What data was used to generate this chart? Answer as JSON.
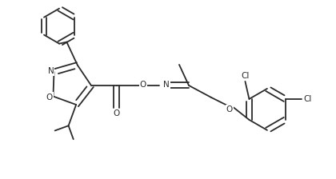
{
  "bg_color": "#ffffff",
  "bond_color": "#2a2a2a",
  "text_color": "#2a2a2a",
  "hetero_color": "#2a2a2a",
  "line_width": 1.3,
  "figsize": [
    4.2,
    2.24
  ],
  "dpi": 100,
  "xlim": [
    0,
    420
  ],
  "ylim": [
    0,
    224
  ]
}
